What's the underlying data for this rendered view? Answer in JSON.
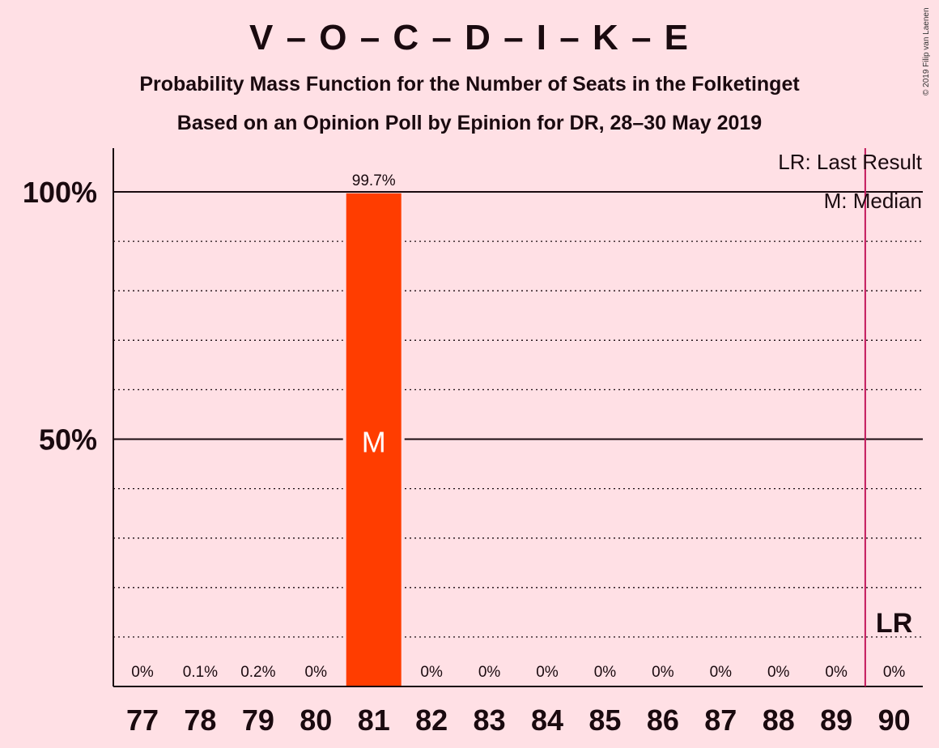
{
  "title": "V – O – C – D – I – K – E",
  "subtitle1": "Probability Mass Function for the Number of Seats in the Folketinget",
  "subtitle2": "Based on an Opinion Poll by Epinion for DR, 28–30 May 2019",
  "copyright": "© 2019 Filip van Laenen",
  "legend": {
    "lr": "LR: Last Result",
    "median": "M: Median"
  },
  "colors": {
    "background": "#FFE0E5",
    "bar": "#FF3D00",
    "last_result_line": "#C2185B",
    "text": "#1a0a0f"
  },
  "chart_data": {
    "type": "bar",
    "categories": [
      77,
      78,
      79,
      80,
      81,
      82,
      83,
      84,
      85,
      86,
      87,
      88,
      89,
      90
    ],
    "values": [
      0,
      0.1,
      0.2,
      0,
      99.7,
      0,
      0,
      0,
      0,
      0,
      0,
      0,
      0,
      0
    ],
    "value_labels": [
      "0%",
      "0.1%",
      "0.2%",
      "0%",
      "99.7%",
      "0%",
      "0%",
      "0%",
      "0%",
      "0%",
      "0%",
      "0%",
      "0%",
      "0%"
    ],
    "ylim": [
      0,
      110
    ],
    "y_ticks": [
      {
        "value": 50,
        "label": "50%"
      },
      {
        "value": 100,
        "label": "100%"
      }
    ],
    "minor_gridlines": [
      10,
      20,
      30,
      40,
      60,
      70,
      80,
      90
    ],
    "median": 81,
    "median_label": "M",
    "last_result": 90,
    "last_result_label": "LR",
    "xlabel": "",
    "ylabel": "",
    "legend_position": "top-right"
  }
}
